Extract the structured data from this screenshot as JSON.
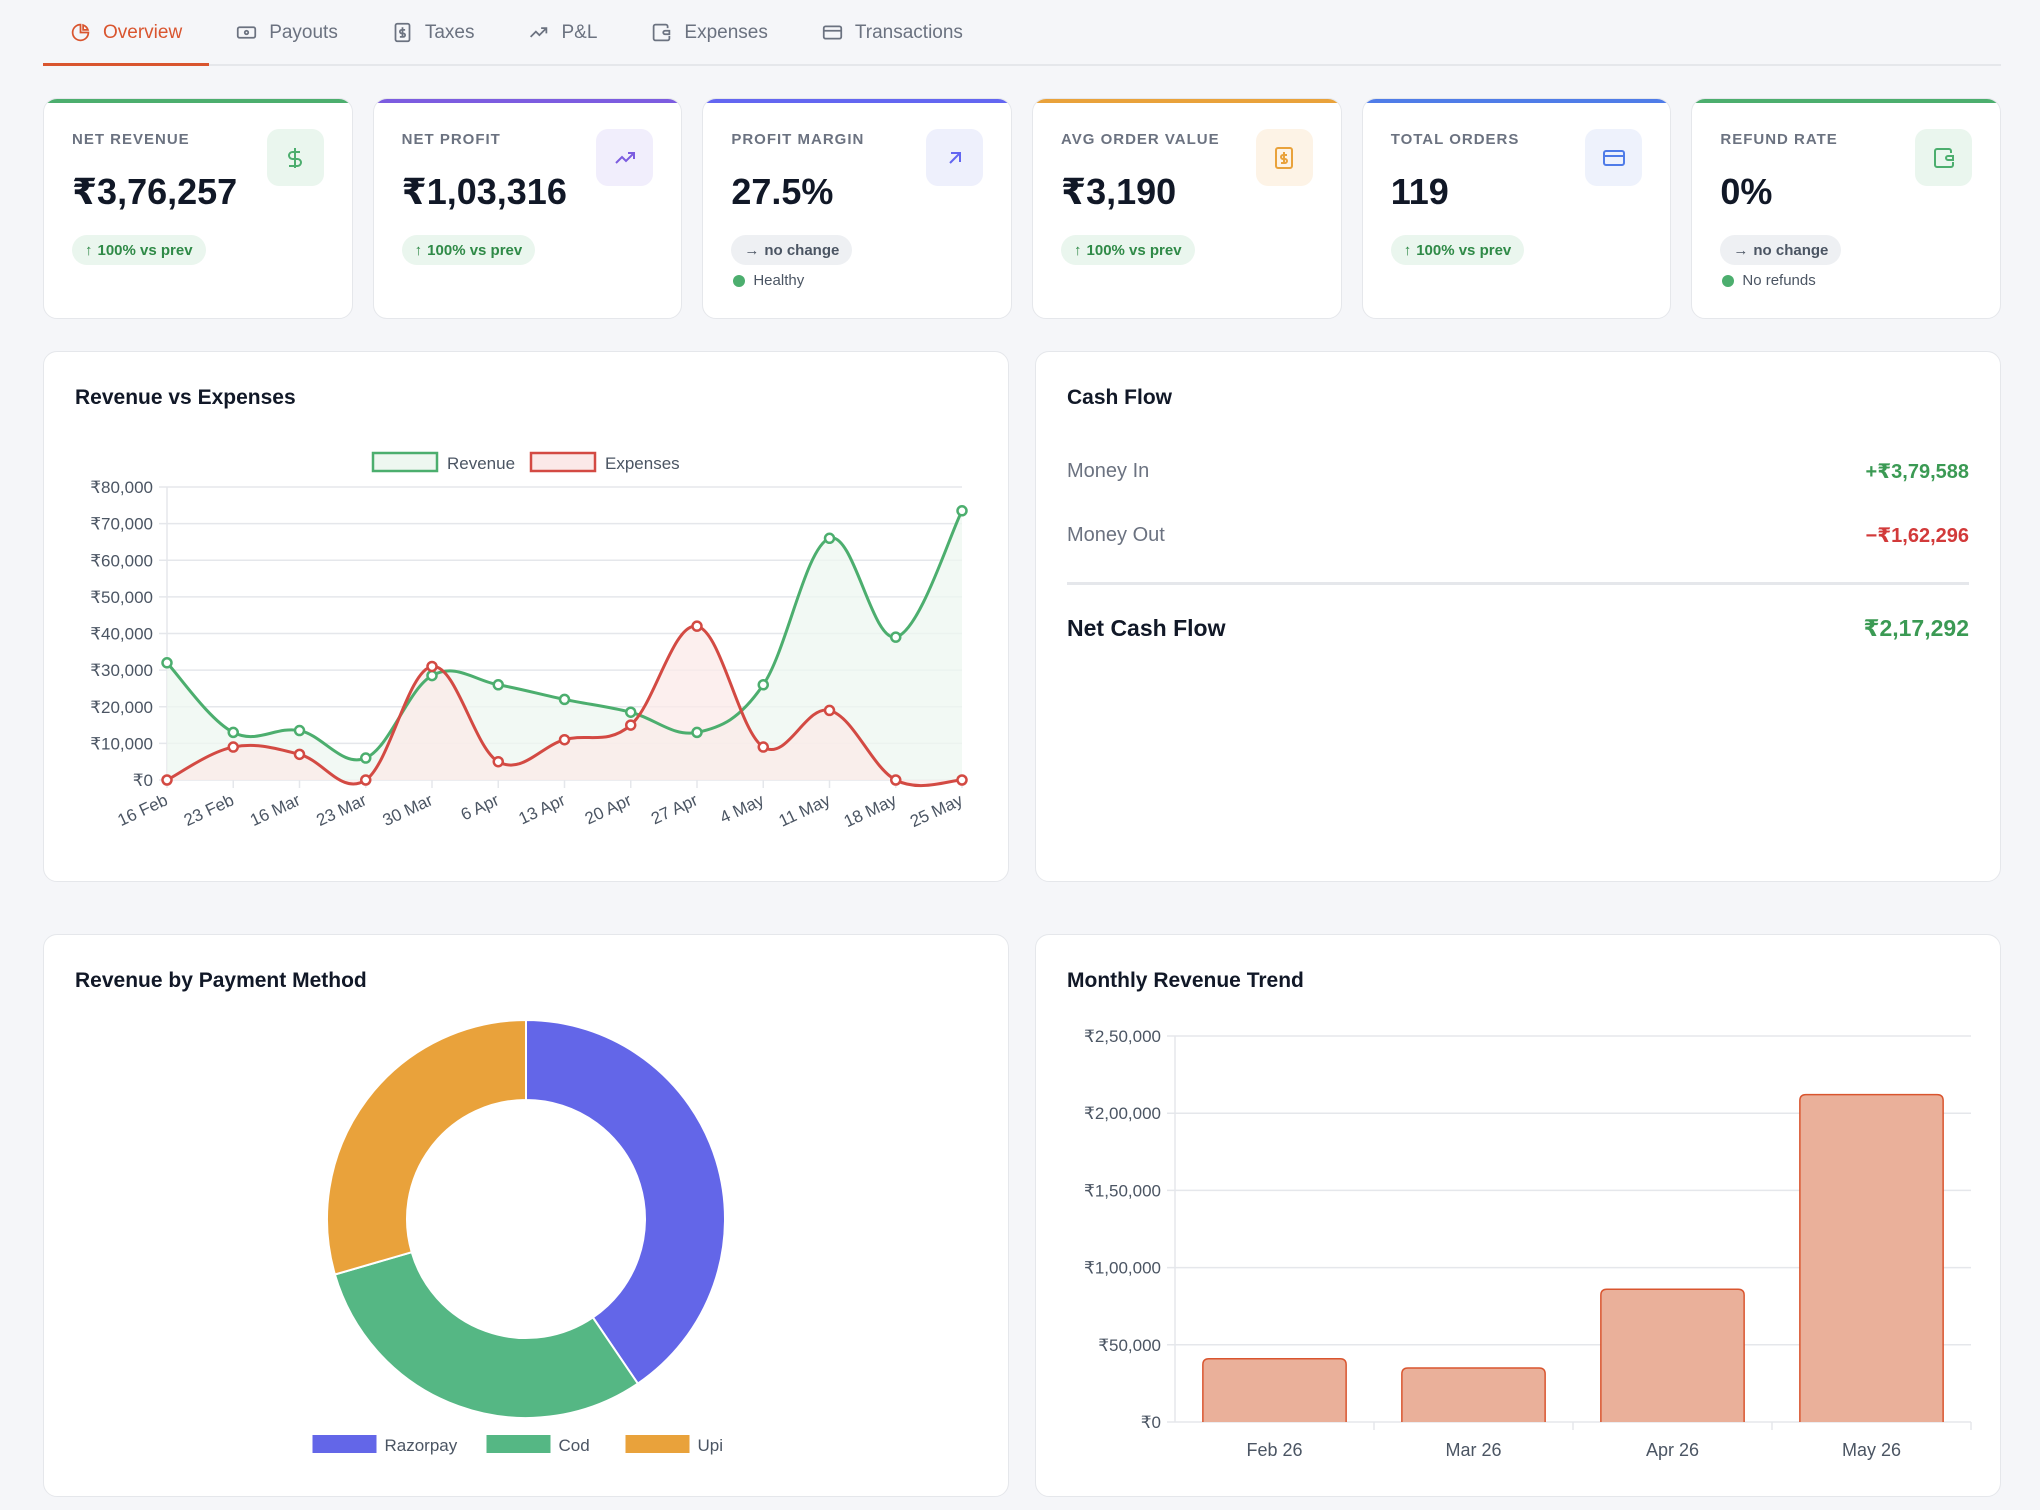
{
  "tabs": [
    {
      "label": "Overview",
      "icon": "pie-chart-icon",
      "active": true
    },
    {
      "label": "Payouts",
      "icon": "banknote-icon",
      "active": false
    },
    {
      "label": "Taxes",
      "icon": "receipt-icon",
      "active": false
    },
    {
      "label": "P&L",
      "icon": "trending-up-icon",
      "active": false
    },
    {
      "label": "Expenses",
      "icon": "wallet-icon",
      "active": false
    },
    {
      "label": "Transactions",
      "icon": "credit-card-icon",
      "active": false
    }
  ],
  "kpis": [
    {
      "label": "NET REVENUE",
      "value": "₹3,76,257",
      "badge": "100% vs prev",
      "trend": "up",
      "status": "",
      "icon": "dollar-icon",
      "color": "#4cae6e",
      "icon_bg": "#eaf6ee"
    },
    {
      "label": "NET PROFIT",
      "value": "₹1,03,316",
      "badge": "100% vs prev",
      "trend": "up",
      "status": "",
      "icon": "trending-up-icon",
      "color": "#7c5ce0",
      "icon_bg": "#f1eefc"
    },
    {
      "label": "PROFIT MARGIN",
      "value": "27.5%",
      "badge": "no change",
      "trend": "flat",
      "status": "Healthy",
      "icon": "arrow-up-right-icon",
      "color": "#6366f1",
      "icon_bg": "#eef0fc"
    },
    {
      "label": "AVG ORDER VALUE",
      "value": "₹3,190",
      "badge": "100% vs prev",
      "trend": "up",
      "status": "",
      "icon": "receipt-icon",
      "color": "#e9a23b",
      "icon_bg": "#fdf3e6"
    },
    {
      "label": "TOTAL ORDERS",
      "value": "119",
      "badge": "100% vs prev",
      "trend": "up",
      "status": "",
      "icon": "credit-card-icon",
      "color": "#4f7ce8",
      "icon_bg": "#eef2fc"
    },
    {
      "label": "REFUND RATE",
      "value": "0%",
      "badge": "no change",
      "trend": "flat",
      "status": "No refunds",
      "icon": "wallet-icon",
      "color": "#4cae6e",
      "icon_bg": "#eaf6ee"
    }
  ],
  "revenue_chart": {
    "title": "Revenue vs Expenses"
  },
  "cash_flow": {
    "title": "Cash Flow",
    "money_in_label": "Money In",
    "money_in": "+₹3,79,588",
    "money_out_label": "Money Out",
    "money_out": "−₹1,62,296",
    "net_label": "Net Cash Flow",
    "net": "₹2,17,292"
  },
  "payment_chart": {
    "title": "Revenue by Payment Method"
  },
  "monthly_chart": {
    "title": "Monthly Revenue Trend"
  },
  "chart_data": [
    {
      "type": "line",
      "title": "Revenue vs Expenses",
      "x": [
        "16 Feb",
        "23 Feb",
        "16 Mar",
        "23 Mar",
        "30 Mar",
        "6 Apr",
        "13 Apr",
        "20 Apr",
        "27 Apr",
        "4 May",
        "11 May",
        "18 May",
        "25 May"
      ],
      "y_ticks": [
        "₹0",
        "₹10,000",
        "₹20,000",
        "₹30,000",
        "₹40,000",
        "₹50,000",
        "₹60,000",
        "₹70,000",
        "₹80,000"
      ],
      "ylim": [
        0,
        80000
      ],
      "legend": "top",
      "series": [
        {
          "name": "Revenue",
          "color": "#4cae6e",
          "fill": "#eef7f0",
          "values": [
            32000,
            13000,
            13500,
            6000,
            28500,
            26000,
            22000,
            18500,
            13000,
            26000,
            66000,
            39000,
            73500
          ]
        },
        {
          "name": "Expenses",
          "color": "#d34a43",
          "fill": "#fbe9e8",
          "values": [
            0,
            9000,
            7000,
            0,
            31000,
            5000,
            11000,
            15000,
            42000,
            9000,
            19000,
            0,
            0
          ]
        }
      ]
    },
    {
      "type": "pie",
      "title": "Revenue by Payment Method",
      "legend": "bottom",
      "series": [
        {
          "name": "Razorpay",
          "color": "#6366e8",
          "value": 40.5
        },
        {
          "name": "Cod",
          "color": "#55b784",
          "value": 30.0
        },
        {
          "name": "Upi",
          "color": "#e9a23b",
          "value": 29.5
        }
      ]
    },
    {
      "type": "bar",
      "title": "Monthly Revenue Trend",
      "categories": [
        "Feb 26",
        "Mar 26",
        "Apr 26",
        "May 26"
      ],
      "values": [
        41000,
        35000,
        86000,
        212000
      ],
      "y_ticks": [
        "₹0",
        "₹50,000",
        "₹1,00,000",
        "₹1,50,000",
        "₹2,00,000",
        "₹2,50,000"
      ],
      "ylim": [
        0,
        250000
      ],
      "color": "#eab09a",
      "stroke": "#d9552f"
    }
  ]
}
